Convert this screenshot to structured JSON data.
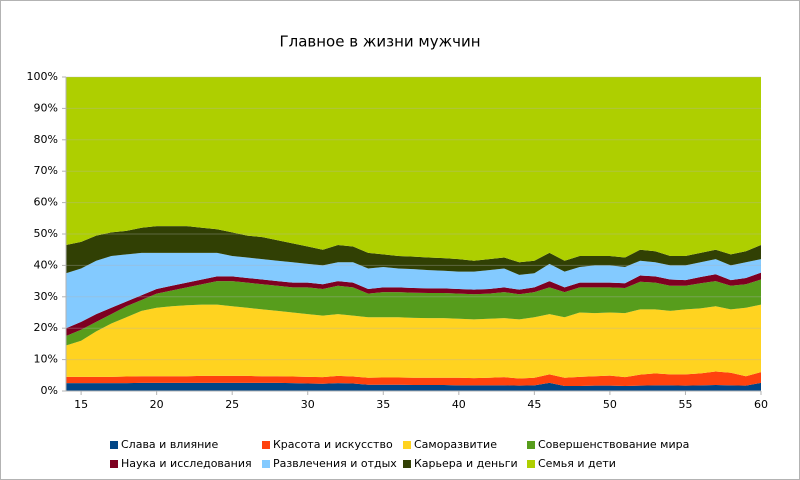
{
  "chart_data": {
    "type": "area",
    "stacked": "percent",
    "title": "Главное в жизни мужчин",
    "x": [
      14,
      15,
      16,
      17,
      18,
      19,
      20,
      21,
      22,
      23,
      24,
      25,
      26,
      27,
      28,
      29,
      30,
      31,
      32,
      33,
      34,
      35,
      36,
      37,
      38,
      39,
      40,
      41,
      42,
      43,
      44,
      45,
      46,
      47,
      48,
      49,
      50,
      51,
      52,
      53,
      54,
      55,
      56,
      57,
      58,
      59,
      60
    ],
    "xlim": [
      14,
      60
    ],
    "xticks": [
      15,
      20,
      25,
      30,
      35,
      40,
      45,
      50,
      55,
      60
    ],
    "ylim": [
      0,
      100
    ],
    "yticks": [
      {
        "value": 0,
        "label": "0%"
      },
      {
        "value": 10,
        "label": "10%"
      },
      {
        "value": 20,
        "label": "20%"
      },
      {
        "value": 30,
        "label": "30%"
      },
      {
        "value": 40,
        "label": "40%"
      },
      {
        "value": 50,
        "label": "50%"
      },
      {
        "value": 60,
        "label": "60%"
      },
      {
        "value": 70,
        "label": "70%"
      },
      {
        "value": 80,
        "label": "80%"
      },
      {
        "value": 90,
        "label": "90%"
      },
      {
        "value": 100,
        "label": "100%"
      }
    ],
    "grid": true,
    "legend": "bottom",
    "series": [
      {
        "name": "Слава и влияние",
        "color": "#004586",
        "values": [
          2.5,
          2.5,
          2.5,
          2.5,
          2.5,
          2.6,
          2.6,
          2.6,
          2.6,
          2.6,
          2.6,
          2.6,
          2.6,
          2.6,
          2.6,
          2.5,
          2.4,
          2.3,
          2.5,
          2.4,
          2.0,
          2.0,
          2.0,
          1.9,
          1.9,
          1.9,
          1.8,
          1.8,
          1.8,
          1.8,
          1.7,
          1.8,
          2.6,
          1.6,
          1.6,
          1.7,
          1.7,
          1.6,
          1.7,
          1.8,
          1.8,
          1.7,
          1.8,
          1.9,
          1.8,
          1.7,
          2.6
        ]
      },
      {
        "name": "Красота и искусство",
        "color": "#ff420e",
        "values": [
          2.0,
          2.0,
          2.0,
          2.0,
          2.1,
          2.1,
          2.1,
          2.1,
          2.1,
          2.2,
          2.2,
          2.2,
          2.2,
          2.1,
          2.1,
          2.1,
          2.1,
          2.1,
          2.3,
          2.2,
          2.2,
          2.3,
          2.3,
          2.3,
          2.3,
          2.3,
          2.4,
          2.3,
          2.4,
          2.6,
          2.3,
          2.4,
          2.7,
          2.6,
          2.9,
          3.0,
          3.2,
          2.8,
          3.5,
          3.8,
          3.5,
          3.6,
          3.8,
          4.3,
          4.0,
          3.0,
          3.4
        ]
      },
      {
        "name": "Саморазвитие",
        "color": "#ffd320",
        "values": [
          10,
          11.5,
          14.5,
          17,
          18.9,
          20.8,
          21.8,
          22.3,
          22.6,
          22.7,
          22.7,
          22.2,
          21.7,
          21.3,
          20.8,
          20.4,
          20,
          19.6,
          19.7,
          19.4,
          19.3,
          19.2,
          19.2,
          19.1,
          19,
          19,
          18.8,
          18.7,
          18.8,
          18.8,
          18.8,
          19.3,
          19.2,
          19.3,
          20.5,
          20.1,
          20.1,
          20.4,
          20.8,
          20.4,
          20.2,
          20.7,
          20.7,
          20.8,
          20.2,
          21.8,
          21.5
        ]
      },
      {
        "name": "Совершенствование мира",
        "color": "#579d1c",
        "values": [
          3,
          3.5,
          3,
          3,
          3.5,
          3.5,
          4.5,
          5,
          5.7,
          6.5,
          7.5,
          8,
          8,
          8,
          8,
          8,
          8.5,
          8.5,
          9,
          9,
          7.5,
          8,
          8,
          8,
          8,
          8,
          8,
          8,
          8,
          8.3,
          8,
          8,
          8.5,
          8,
          8,
          8.2,
          8,
          8,
          8.8,
          8.5,
          8,
          7.5,
          8,
          8,
          7.5,
          7.5,
          8
        ]
      },
      {
        "name": "Наука и исследования",
        "color": "#7e0021",
        "values": [
          2.5,
          2.5,
          2.5,
          2,
          1.5,
          1.5,
          1.5,
          1.5,
          1.5,
          1.5,
          1.5,
          1.5,
          1.5,
          1.5,
          1.5,
          1.5,
          1.5,
          1.5,
          1.5,
          1.5,
          1.5,
          1.5,
          1.5,
          1.5,
          1.5,
          1.5,
          1.5,
          1.5,
          1.5,
          1.5,
          1.5,
          1.5,
          2,
          1.5,
          1.5,
          1.5,
          1.5,
          1.5,
          2,
          2,
          2,
          1.8,
          2,
          2.2,
          1.8,
          2,
          2.2
        ]
      },
      {
        "name": "Развлечения и отдых",
        "color": "#83caff",
        "values": [
          17.5,
          17,
          17,
          16.5,
          15,
          13.5,
          11.5,
          10.5,
          9.5,
          8.5,
          7.5,
          6.5,
          6.5,
          6.5,
          6.5,
          6.5,
          6,
          6,
          6,
          6.5,
          6.5,
          6.5,
          6,
          6,
          5.8,
          5.6,
          5.5,
          5.7,
          6,
          6,
          4.7,
          4.5,
          5.5,
          5,
          5,
          5.5,
          5.5,
          5.2,
          4.7,
          4.5,
          4.5,
          4.7,
          4.7,
          4.8,
          4.7,
          5,
          4.3
        ]
      },
      {
        "name": "Карьера и деньги",
        "color": "#314004",
        "values": [
          9,
          8.5,
          8,
          7.5,
          7.5,
          8,
          8.5,
          8.5,
          8.5,
          8,
          7.5,
          7.5,
          7,
          7,
          6.5,
          6,
          5.5,
          5,
          5.5,
          5,
          5,
          4,
          4,
          4,
          4,
          4,
          4,
          3.5,
          3.5,
          3.5,
          4,
          4,
          3.5,
          3.5,
          3.5,
          3,
          3,
          3,
          3.5,
          3.5,
          3,
          3,
          3,
          3,
          3.5,
          3.5,
          4.5
        ]
      },
      {
        "name": "Семья и дети",
        "color": "#aecf00",
        "values": [
          53.5,
          52.5,
          50.5,
          49.5,
          49,
          48,
          47.5,
          47.5,
          47.5,
          48,
          48.5,
          49.5,
          50.5,
          51,
          52,
          53,
          54,
          55,
          53.5,
          54,
          56,
          56.5,
          57,
          57.2,
          57.5,
          57.7,
          58,
          58.5,
          58,
          57.5,
          59,
          58.5,
          56,
          58.5,
          57,
          57,
          57,
          57.5,
          55,
          55.5,
          57,
          57,
          56,
          55,
          56.5,
          55.5,
          53.5
        ]
      }
    ]
  }
}
